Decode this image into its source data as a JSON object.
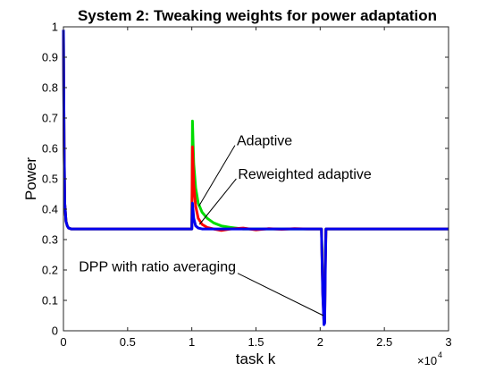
{
  "chart_data": {
    "type": "line",
    "title": "System 2: Tweaking weights for power adaptation",
    "xlabel": "task k",
    "ylabel": "Power",
    "xlim": [
      0,
      30000
    ],
    "ylim": [
      0,
      1
    ],
    "x_multiplier_text": "×10",
    "x_multiplier_exp": "4",
    "xticks": [
      0,
      5000,
      10000,
      15000,
      20000,
      25000,
      30000
    ],
    "xtick_labels": [
      "0",
      "0.5",
      "1",
      "1.5",
      "2",
      "2.5",
      "3"
    ],
    "yticks": [
      0,
      0.1,
      0.2,
      0.3,
      0.4,
      0.5,
      0.6,
      0.7,
      0.8,
      0.9,
      1
    ],
    "ytick_labels": [
      "0",
      "0.1",
      "0.2",
      "0.3",
      "0.4",
      "0.5",
      "0.6",
      "0.7",
      "0.8",
      "0.9",
      "1"
    ],
    "grid": false,
    "series": [
      {
        "color": "#00dd00",
        "x": [
          0,
          50,
          100,
          200,
          300,
          400,
          600,
          1000,
          5000,
          9900,
          10000,
          10050,
          10150,
          10300,
          10500,
          10800,
          11200,
          11700,
          12300,
          13000,
          14000,
          15000,
          16000,
          17000,
          18000,
          19000,
          20000,
          20100,
          20200,
          20300,
          20350,
          20400,
          20450,
          20500,
          21000,
          25000,
          30000
        ],
        "y": [
          0.975,
          0.62,
          0.42,
          0.36,
          0.345,
          0.338,
          0.335,
          0.335,
          0.335,
          0.335,
          0.335,
          0.69,
          0.55,
          0.47,
          0.42,
          0.39,
          0.37,
          0.355,
          0.345,
          0.34,
          0.335,
          0.335,
          0.335,
          0.335,
          0.335,
          0.335,
          0.335,
          0.335,
          0.15,
          0.025,
          0.03,
          0.25,
          0.335,
          0.335,
          0.335,
          0.335,
          0.335
        ]
      },
      {
        "color": "#ff0000",
        "x": [
          0,
          50,
          100,
          200,
          300,
          400,
          600,
          1000,
          5000,
          9900,
          10000,
          10050,
          10150,
          10300,
          10500,
          10800,
          11200,
          11700,
          12300,
          13000,
          14000,
          15000,
          16000,
          17000,
          18000,
          19000,
          20000,
          20100,
          20200,
          20300,
          20350,
          20400,
          20450,
          20500,
          21000,
          25000,
          30000
        ],
        "y": [
          0.975,
          0.62,
          0.42,
          0.36,
          0.345,
          0.338,
          0.335,
          0.335,
          0.335,
          0.335,
          0.335,
          0.605,
          0.48,
          0.41,
          0.37,
          0.35,
          0.34,
          0.335,
          0.33,
          0.335,
          0.338,
          0.332,
          0.336,
          0.334,
          0.336,
          0.335,
          0.335,
          0.335,
          0.13,
          0.025,
          0.03,
          0.22,
          0.335,
          0.335,
          0.335,
          0.335,
          0.335
        ]
      },
      {
        "color": "#0000ee",
        "x": [
          0,
          50,
          100,
          200,
          300,
          400,
          600,
          1000,
          5000,
          9900,
          10000,
          10050,
          10150,
          10300,
          10500,
          10800,
          11200,
          11700,
          12300,
          13000,
          14000,
          15000,
          16000,
          17000,
          18000,
          19000,
          20000,
          20100,
          20200,
          20300,
          20350,
          20400,
          20450,
          20500,
          21000,
          25000,
          30000
        ],
        "y": [
          0.99,
          0.62,
          0.42,
          0.36,
          0.345,
          0.338,
          0.335,
          0.335,
          0.335,
          0.335,
          0.335,
          0.42,
          0.37,
          0.345,
          0.338,
          0.335,
          0.335,
          0.335,
          0.335,
          0.335,
          0.335,
          0.335,
          0.335,
          0.335,
          0.335,
          0.335,
          0.335,
          0.335,
          0.12,
          0.02,
          0.025,
          0.2,
          0.335,
          0.335,
          0.335,
          0.335,
          0.335
        ]
      }
    ],
    "annotations": [
      {
        "text": "Adaptive",
        "text_x": 13500,
        "text_y": 0.61,
        "point_x": 10550,
        "point_y": 0.41
      },
      {
        "text": "Reweighted adaptive",
        "text_x": 13600,
        "text_y": 0.5,
        "point_x": 10600,
        "point_y": 0.35
      },
      {
        "text": "DPP with ratio averaging",
        "text_x": 1200,
        "text_y": 0.195,
        "point_x": 20250,
        "point_y": 0.05
      }
    ]
  }
}
